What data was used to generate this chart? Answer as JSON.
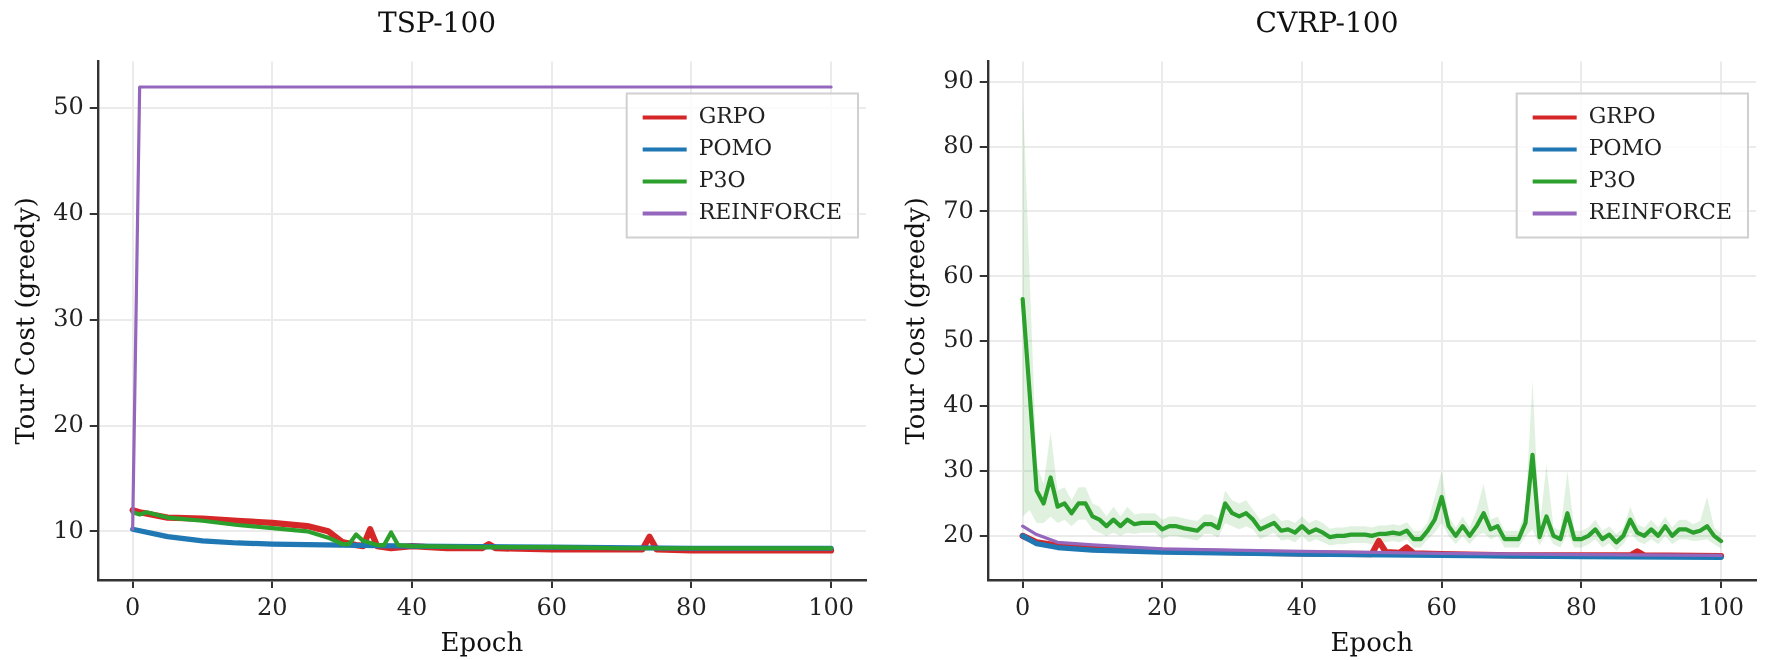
{
  "chart_data": [
    {
      "type": "line",
      "title": "TSP-100",
      "xlabel": "Epoch",
      "ylabel": "Tour Cost (greedy)",
      "xlim": [
        -5,
        105
      ],
      "xticks": [
        0,
        20,
        40,
        60,
        80,
        100
      ],
      "ylim": [
        5.4,
        54.4
      ],
      "yticks": [
        10,
        20,
        30,
        40,
        50
      ],
      "grid": true,
      "legend": "top right",
      "series": [
        {
          "name": "GRPO",
          "color": "#d62728",
          "x": [
            0,
            1,
            5,
            10,
            15,
            20,
            25,
            28,
            30,
            32,
            33,
            34,
            35,
            37,
            40,
            45,
            50,
            51,
            52,
            60,
            70,
            73,
            74,
            75,
            80,
            90,
            100
          ],
          "values": [
            12,
            11.8,
            11.3,
            11.2,
            11,
            10.8,
            10.5,
            10,
            9,
            8.7,
            8.6,
            10.2,
            8.6,
            8.4,
            8.6,
            8.4,
            8.4,
            8.8,
            8.4,
            8.3,
            8.3,
            8.3,
            9.5,
            8.3,
            8.2,
            8.2,
            8.2
          ]
        },
        {
          "name": "POMO",
          "color": "#1f77b4",
          "x": [
            0,
            5,
            10,
            15,
            20,
            30,
            40,
            60,
            80,
            100
          ],
          "values": [
            10.2,
            9.5,
            9.1,
            8.9,
            8.8,
            8.7,
            8.6,
            8.5,
            8.4,
            8.4
          ]
        },
        {
          "name": "P3O",
          "color": "#2ca02c",
          "x": [
            0,
            1,
            2,
            5,
            10,
            15,
            20,
            25,
            28,
            30,
            31,
            32,
            33,
            35,
            36,
            37,
            38,
            40,
            50,
            60,
            70,
            80,
            90,
            100
          ],
          "values": [
            11.8,
            11.6,
            11.8,
            11.3,
            11,
            10.6,
            10.3,
            10,
            9.4,
            8.8,
            8.8,
            9.7,
            9.1,
            8.7,
            8.7,
            9.9,
            8.7,
            8.6,
            8.5,
            8.5,
            8.4,
            8.4,
            8.4,
            8.4
          ]
        },
        {
          "name": "REINFORCE",
          "color": "#9467bd",
          "x": [
            0,
            1,
            100
          ],
          "values": [
            10.2,
            52,
            52
          ]
        }
      ]
    },
    {
      "type": "line",
      "title": "CVRP-100",
      "xlabel": "Epoch",
      "ylabel": "Tour Cost (greedy)",
      "xlim": [
        -5,
        105
      ],
      "xticks": [
        0,
        20,
        40,
        60,
        80,
        100
      ],
      "ylim": [
        13.2,
        93.1
      ],
      "yticks": [
        20,
        30,
        40,
        50,
        60,
        70,
        80,
        90
      ],
      "grid": true,
      "legend": "top right",
      "series": [
        {
          "name": "GRPO",
          "color": "#d62728",
          "x": [
            0,
            2,
            5,
            10,
            20,
            30,
            40,
            50,
            51,
            52,
            54,
            55,
            56,
            60,
            70,
            80,
            87,
            88,
            89,
            100
          ],
          "values": [
            20,
            19,
            18.5,
            18,
            17.7,
            17.5,
            17.3,
            17.2,
            19.2,
            17.5,
            17.4,
            18.2,
            17.3,
            17.2,
            17,
            17,
            17,
            17.6,
            17,
            16.9
          ]
        },
        {
          "name": "POMO",
          "color": "#1f77b4",
          "x": [
            0,
            2,
            5,
            10,
            20,
            40,
            60,
            80,
            100
          ],
          "values": [
            20,
            18.8,
            18.2,
            17.8,
            17.5,
            17.2,
            17,
            16.8,
            16.7
          ]
        },
        {
          "name": "P3O",
          "color": "#2ca02c",
          "x": [
            0,
            1,
            2,
            3,
            4,
            5,
            6,
            7,
            8,
            9,
            10,
            11,
            12,
            13,
            14,
            15,
            16,
            17,
            18,
            19,
            20,
            21,
            22,
            23,
            24,
            25,
            26,
            27,
            28,
            29,
            30,
            31,
            32,
            33,
            34,
            35,
            36,
            37,
            38,
            39,
            40,
            41,
            42,
            43,
            44,
            45,
            46,
            47,
            48,
            49,
            50,
            51,
            52,
            53,
            54,
            55,
            56,
            57,
            58,
            59,
            60,
            61,
            62,
            63,
            64,
            65,
            66,
            67,
            68,
            69,
            70,
            71,
            72,
            73,
            74,
            75,
            76,
            77,
            78,
            79,
            80,
            81,
            82,
            83,
            84,
            85,
            86,
            87,
            88,
            89,
            90,
            91,
            92,
            93,
            94,
            95,
            96,
            97,
            98,
            99,
            100
          ],
          "values": [
            56.5,
            42,
            27,
            25,
            29,
            24.5,
            25,
            23.5,
            25,
            25,
            23,
            22.5,
            21.5,
            22.5,
            21.5,
            22.5,
            21.8,
            22,
            22,
            22,
            21,
            21.5,
            21.5,
            21.2,
            21,
            20.8,
            21.8,
            21.8,
            21.2,
            25,
            23.5,
            23,
            23.5,
            22.5,
            21,
            21.5,
            22,
            20.8,
            21,
            20.5,
            21.5,
            20.5,
            21,
            20.5,
            19.8,
            20,
            20,
            20.2,
            20.2,
            20.2,
            20,
            20.3,
            20.3,
            20.5,
            20.3,
            20.8,
            19.5,
            19.5,
            20.8,
            22.5,
            26,
            21.5,
            20,
            21.5,
            20,
            21.5,
            23.5,
            21,
            21.5,
            19.5,
            19.5,
            19.5,
            22,
            32.5,
            19.8,
            23,
            20,
            19.5,
            23.5,
            19.5,
            19.5,
            20,
            21,
            19.5,
            20.2,
            19,
            20,
            22.5,
            20.5,
            20,
            21,
            20,
            21.5,
            20,
            21,
            21,
            20.5,
            20.8,
            21.5,
            20,
            19.2
          ],
          "lower": [
            23,
            24,
            22,
            22,
            23,
            22,
            22.5,
            21.5,
            22.5,
            22.5,
            21,
            20.5,
            20,
            20.5,
            20,
            20.5,
            20.3,
            20.5,
            20.5,
            20.5,
            19.5,
            20,
            20,
            19.7,
            19.5,
            19.3,
            20.3,
            20.3,
            19.7,
            22,
            21.5,
            21,
            21.5,
            21,
            19.5,
            20,
            20.5,
            19.3,
            19.5,
            19,
            20,
            19,
            19.5,
            19,
            18.5,
            18.7,
            18.7,
            18.9,
            18.9,
            18.9,
            18.7,
            19,
            19,
            19.2,
            19,
            19.5,
            18.2,
            18.2,
            19.5,
            20.5,
            22,
            20,
            18.7,
            20,
            18.7,
            20,
            20.5,
            19.5,
            20,
            18.2,
            18.2,
            18.2,
            20,
            21,
            18.5,
            20.5,
            18.7,
            18.2,
            20.5,
            18.2,
            18.2,
            18.7,
            19.5,
            18.2,
            18.9,
            17.7,
            18.7,
            20.5,
            19.2,
            18.7,
            19.5,
            18.7,
            20,
            18.7,
            19.5,
            19.5,
            19.2,
            19.3,
            19.5,
            18.7,
            18
          ],
          "upper": [
            89,
            60,
            31,
            28,
            36,
            27,
            27.5,
            25.5,
            27.5,
            27.5,
            25,
            24.5,
            23,
            24.5,
            23,
            24.5,
            23.3,
            23.5,
            23.5,
            23.5,
            22.5,
            23,
            23,
            22.7,
            22.5,
            22.3,
            23.3,
            23.3,
            22.7,
            27,
            25.5,
            25,
            25.5,
            24,
            22.5,
            23,
            23.5,
            22.3,
            22.5,
            22,
            23,
            22,
            22.5,
            22,
            21.1,
            21.3,
            21.3,
            21.5,
            21.5,
            21.5,
            21.3,
            21.6,
            21.6,
            21.8,
            21.6,
            22.1,
            20.8,
            20.8,
            22.1,
            26,
            30,
            23,
            21.3,
            23,
            21.3,
            24,
            28,
            22.5,
            23,
            20.8,
            20.8,
            20.8,
            24,
            44,
            21.1,
            31,
            21.3,
            20.8,
            30,
            20.8,
            20.8,
            21.3,
            22.5,
            20.8,
            21.5,
            20.3,
            21.3,
            24.5,
            21.8,
            21.3,
            22.5,
            21.3,
            23,
            21.3,
            22.5,
            22.5,
            21.8,
            22.3,
            26,
            21.3,
            20.4
          ]
        },
        {
          "name": "REINFORCE",
          "color": "#9467bd",
          "x": [
            0,
            2,
            5,
            10,
            20,
            40,
            60,
            80,
            100
          ],
          "values": [
            21.5,
            20.2,
            19,
            18.6,
            18,
            17.6,
            17.3,
            17.1,
            17
          ]
        }
      ]
    }
  ]
}
